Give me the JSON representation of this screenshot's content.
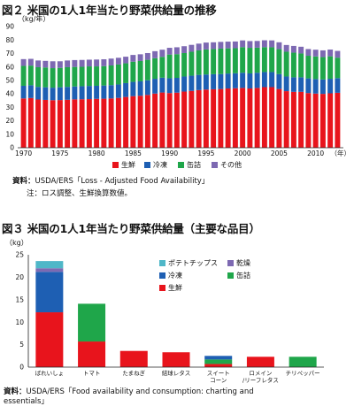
{
  "fig2": {
    "title": "図２ 米国の1人1年当たり野菜供給量の推移",
    "unit": "（kg/年）",
    "source_label": "資料：",
    "source_text": "USDA/ERS「Loss - Adjusted Food Availability」",
    "note_label": "注：",
    "note_text": "ロス調整、生鮮換算数値。"
  },
  "fig3": {
    "title": "図３ 米国の1人1年当たり野菜供給量（主要な品目）",
    "unit": "（kg）",
    "source_label": "資料：",
    "source_text_1": "USDA/ERS「Food availability and consumption: charting and",
    "source_text_2": "essentials」"
  },
  "chart_data": [
    {
      "type": "bar",
      "stacked": true,
      "title": "図２ 米国の1人1年当たり野菜供給量の推移",
      "ylabel": "（kg/年）",
      "xlabel": "（年）",
      "ylim": [
        0,
        90
      ],
      "yticks": [
        0,
        10,
        20,
        30,
        40,
        50,
        60,
        70,
        80,
        90
      ],
      "xtick_labels": [
        "1970",
        "1975",
        "1980",
        "1985",
        "1990",
        "1995",
        "2000",
        "2005",
        "2010"
      ],
      "x_axis_end_label": "（年）",
      "grid": false,
      "legend_position": "bottom",
      "x": [
        1970,
        1971,
        1972,
        1973,
        1974,
        1975,
        1976,
        1977,
        1978,
        1979,
        1980,
        1981,
        1982,
        1983,
        1984,
        1985,
        1986,
        1987,
        1988,
        1989,
        1990,
        1991,
        1992,
        1993,
        1994,
        1995,
        1996,
        1997,
        1998,
        1999,
        2000,
        2001,
        2002,
        2003,
        2004,
        2005,
        2006,
        2007,
        2008,
        2009,
        2010,
        2011,
        2012,
        2013
      ],
      "series": [
        {
          "name": "生鮮",
          "color": "#e8141c",
          "values": [
            36.6,
            36.9,
            35.8,
            35.5,
            35.3,
            35.4,
            35.6,
            35.9,
            36.0,
            36.1,
            36.3,
            36.4,
            36.6,
            37.0,
            37.7,
            38.3,
            38.6,
            39.2,
            40.2,
            41.0,
            40.6,
            40.9,
            41.7,
            42.2,
            42.8,
            43.2,
            43.4,
            43.6,
            44.0,
            44.2,
            44.4,
            44.0,
            44.4,
            45.0,
            45.0,
            43.6,
            42.0,
            41.5,
            41.5,
            40.6,
            40.2,
            40.0,
            40.4,
            40.8
          ]
        },
        {
          "name": "冷凍",
          "color": "#1e5fb3",
          "values": [
            9.4,
            9.5,
            9.4,
            9.4,
            9.3,
            9.5,
            9.6,
            9.6,
            9.7,
            9.8,
            9.7,
            9.8,
            9.9,
            10.0,
            10.3,
            10.6,
            10.7,
            10.9,
            11.0,
            11.0,
            11.0,
            11.0,
            11.2,
            11.3,
            11.3,
            11.2,
            11.2,
            11.1,
            11.1,
            11.1,
            11.3,
            11.2,
            11.3,
            11.2,
            11.2,
            11.1,
            10.9,
            10.8,
            10.8,
            10.9,
            10.8,
            10.7,
            10.8,
            10.9
          ]
        },
        {
          "name": "缶詰",
          "color": "#1fa64a",
          "values": [
            14.8,
            14.6,
            14.6,
            14.7,
            14.5,
            14.4,
            14.6,
            14.5,
            14.4,
            14.5,
            14.4,
            14.4,
            14.6,
            14.8,
            14.7,
            15.0,
            15.1,
            15.2,
            15.3,
            15.5,
            17.6,
            17.6,
            17.4,
            17.8,
            18.2,
            18.6,
            18.7,
            18.9,
            18.7,
            18.6,
            19.0,
            19.0,
            18.6,
            18.5,
            18.4,
            18.5,
            18.4,
            18.3,
            17.7,
            16.8,
            16.8,
            16.6,
            16.7,
            15.2
          ]
        },
        {
          "name": "その他",
          "color": "#7d69b2",
          "values": [
            5.0,
            5.0,
            5.0,
            4.9,
            5.1,
            4.9,
            5.0,
            5.1,
            5.1,
            5.0,
            5.1,
            5.1,
            5.1,
            5.0,
            4.9,
            5.0,
            5.0,
            5.0,
            5.2,
            5.3,
            5.0,
            5.1,
            5.1,
            5.1,
            5.0,
            5.1,
            5.0,
            5.0,
            5.0,
            5.0,
            5.0,
            5.0,
            5.0,
            5.1,
            5.1,
            5.1,
            5.0,
            5.0,
            5.0,
            5.0,
            5.0,
            5.0,
            5.0,
            5.0
          ]
        }
      ]
    },
    {
      "type": "bar",
      "stacked": true,
      "title": "図３ 米国の1人1年当たり野菜供給量（主要な品目）",
      "ylabel": "（kg）",
      "ylim": [
        0,
        25
      ],
      "yticks": [
        0,
        5,
        10,
        15,
        20,
        25
      ],
      "grid": false,
      "legend_position": "top-right",
      "categories": [
        "ばれいしょ",
        "トマト",
        "たまねぎ",
        "結球レタス",
        "スイート\nコーン",
        "ロメイン\n/リーフレタス",
        "チリペッパー"
      ],
      "series": [
        {
          "name": "生鮮",
          "color": "#e8141c",
          "values": [
            12.2,
            5.7,
            3.6,
            3.3,
            0.7,
            2.3,
            0
          ]
        },
        {
          "name": "缶詰",
          "color": "#1fa64a",
          "values": [
            0,
            8.4,
            0,
            0,
            1.0,
            0,
            2.3
          ]
        },
        {
          "name": "冷凍",
          "color": "#1e5fb3",
          "values": [
            9.0,
            0,
            0,
            0,
            0.8,
            0,
            0
          ]
        },
        {
          "name": "乾燥",
          "color": "#7d69b2",
          "values": [
            0.8,
            0,
            0,
            0,
            0,
            0,
            0
          ]
        },
        {
          "name": "ポテトチップス",
          "color": "#4fb7c8",
          "values": [
            1.6,
            0,
            0,
            0,
            0,
            0,
            0
          ]
        }
      ],
      "legend_order": [
        "ポテトチップス",
        "乾燥",
        "冷凍",
        "缶詰",
        "生鮮"
      ]
    }
  ]
}
